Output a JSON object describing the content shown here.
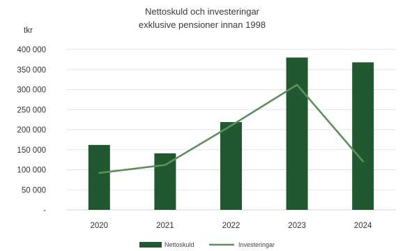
{
  "chart_data": {
    "type": "bar",
    "title": "Nettoskuld och investeringar",
    "subtitle": "exklusive pensioner innan 1998",
    "unit_label": "tkr",
    "categories": [
      "2020",
      "2021",
      "2022",
      "2023",
      "2024"
    ],
    "series": [
      {
        "name": "Nettoskuld",
        "type": "bar",
        "color": "#21582f",
        "values": [
          162000,
          141000,
          219000,
          380000,
          368000
        ]
      },
      {
        "name": "Investeringar",
        "type": "line",
        "color": "#5e8f5f",
        "values": [
          92000,
          112000,
          210000,
          312000,
          121000
        ]
      }
    ],
    "y_ticks": [
      0,
      50000,
      100000,
      150000,
      200000,
      250000,
      300000,
      350000,
      400000
    ],
    "y_tick_labels": [
      "-",
      "50 000",
      "100 000",
      "150 000",
      "200 000",
      "250 000",
      "300 000",
      "350 000",
      "400 000"
    ],
    "ylim": [
      0,
      400000
    ],
    "grid": true,
    "legend_position": "bottom"
  }
}
